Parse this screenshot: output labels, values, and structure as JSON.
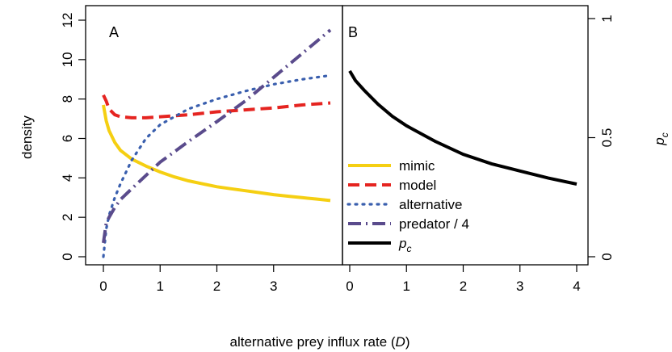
{
  "chart_data": [
    {
      "panel_label": "A",
      "type": "line",
      "ylabel": "density",
      "xlim": [
        -0.15,
        4.0
      ],
      "ylim": [
        -0.5,
        12.5
      ],
      "xticks": [
        "0",
        "1",
        "2",
        "3"
      ],
      "yticks": [
        "0",
        "2",
        "4",
        "6",
        "8",
        "10",
        "12"
      ],
      "series": [
        {
          "name": "mimic",
          "color": "#F5CF12",
          "dash": "solid",
          "x": [
            0,
            0.05,
            0.1,
            0.2,
            0.3,
            0.5,
            0.75,
            1.0,
            1.25,
            1.5,
            1.75,
            2.0,
            2.25,
            2.5,
            2.75,
            3.0,
            3.25,
            3.5,
            3.75,
            4.0
          ],
          "values": [
            7.7,
            6.9,
            6.4,
            5.8,
            5.4,
            4.95,
            4.6,
            4.3,
            4.05,
            3.85,
            3.7,
            3.55,
            3.45,
            3.35,
            3.25,
            3.15,
            3.07,
            3.0,
            2.93,
            2.85
          ]
        },
        {
          "name": "model",
          "color": "#E52420",
          "dash": "dashed",
          "x": [
            0,
            0.05,
            0.1,
            0.2,
            0.3,
            0.5,
            0.75,
            1.0,
            1.5,
            2.0,
            2.5,
            3.0,
            3.5,
            4.0
          ],
          "values": [
            8.2,
            7.9,
            7.5,
            7.2,
            7.1,
            7.05,
            7.05,
            7.1,
            7.2,
            7.35,
            7.45,
            7.55,
            7.7,
            7.8
          ]
        },
        {
          "name": "alternative",
          "color": "#3A5FAE",
          "dash": "dotted",
          "x": [
            0,
            0.05,
            0.1,
            0.2,
            0.3,
            0.5,
            0.75,
            1.0,
            1.5,
            2.0,
            2.5,
            3.0,
            3.5,
            4.0
          ],
          "values": [
            0,
            1.4,
            2.1,
            3.0,
            3.7,
            4.9,
            6.0,
            6.7,
            7.5,
            8.0,
            8.4,
            8.75,
            9.0,
            9.2
          ]
        },
        {
          "name": "predator / 4",
          "color": "#5A4B8C",
          "dash": "dashdot",
          "x": [
            0,
            0.05,
            0.1,
            0.2,
            0.3,
            0.5,
            1.0,
            1.5,
            2.0,
            2.5,
            3.0,
            3.5,
            4.0
          ],
          "values": [
            0.7,
            1.7,
            2.0,
            2.5,
            2.9,
            3.45,
            4.8,
            5.85,
            6.85,
            7.9,
            9.1,
            10.3,
            11.5
          ]
        }
      ]
    },
    {
      "panel_label": "B",
      "type": "line",
      "ylabel": "p_c",
      "xlim": [
        -0.15,
        4.0
      ],
      "ylim": [
        -0.05,
        1.05
      ],
      "xticks": [
        "0",
        "1",
        "2",
        "3",
        "4"
      ],
      "yticks": [
        "0",
        "0.5",
        "1"
      ],
      "series": [
        {
          "name": "p_c",
          "color": "#000000",
          "dash": "solid",
          "x": [
            0,
            0.1,
            0.25,
            0.5,
            0.75,
            1.0,
            1.5,
            2.0,
            2.5,
            3.0,
            3.5,
            4.0
          ],
          "values": [
            0.78,
            0.74,
            0.7,
            0.64,
            0.59,
            0.55,
            0.485,
            0.43,
            0.39,
            0.36,
            0.33,
            0.305
          ]
        }
      ]
    }
  ],
  "xlabel_main": "alternative prey influx rate (",
  "xlabel_var": "D",
  "xlabel_close": ")",
  "legend": [
    {
      "label": "mimic",
      "sub": ""
    },
    {
      "label": "model",
      "sub": ""
    },
    {
      "label": "alternative",
      "sub": ""
    },
    {
      "label": "predator / 4",
      "sub": ""
    },
    {
      "label": "p",
      "sub": "c"
    }
  ],
  "ylabel_right_main": "p",
  "ylabel_right_sub": "c"
}
